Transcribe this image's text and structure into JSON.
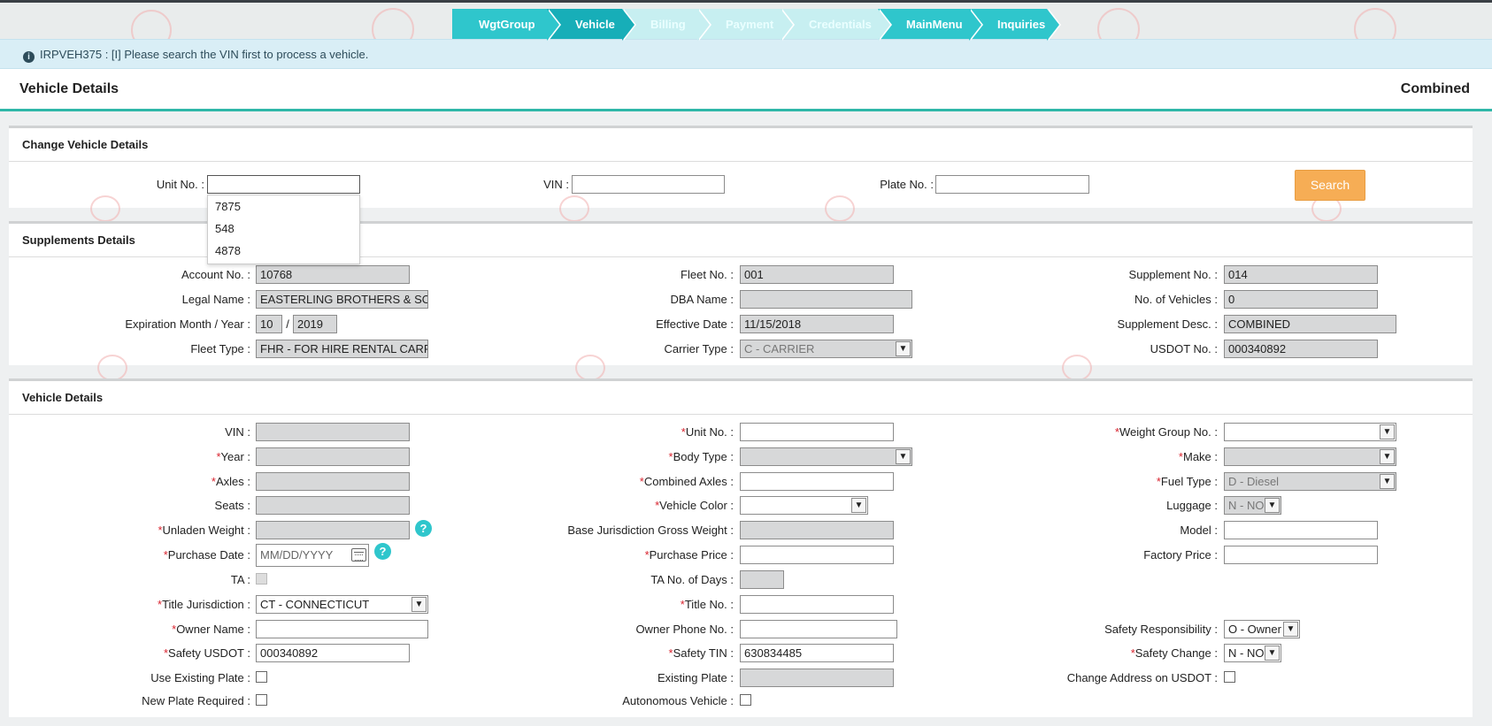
{
  "wizard": {
    "steps": [
      {
        "label": "WgtGroup",
        "state": "active"
      },
      {
        "label": "Vehicle",
        "state": "current"
      },
      {
        "label": "Billing",
        "state": "disabled"
      },
      {
        "label": "Payment",
        "state": "disabled"
      },
      {
        "label": "Credentials",
        "state": "disabled"
      },
      {
        "label": "MainMenu",
        "state": "active"
      },
      {
        "label": "Inquiries",
        "state": "active"
      }
    ]
  },
  "alert": {
    "icon": "info-circle-icon",
    "message": "IRPVEH375 : [I] Please search the VIN first to process a vehicle."
  },
  "header": {
    "title": "Vehicle Details",
    "mode": "Combined"
  },
  "change_vehicle": {
    "title": "Change Vehicle Details",
    "unit_label": "Unit No. :",
    "vin_label": "VIN :",
    "plate_label": "Plate No. :",
    "unit_value": "",
    "vin_value": "",
    "plate_value": "",
    "search_label": "Search",
    "unit_suggestions": [
      "7875",
      "548",
      "4878"
    ]
  },
  "supplements": {
    "title": "Supplements Details",
    "account_label": "Account No. :",
    "account_value": "10768",
    "fleet_label": "Fleet No. :",
    "fleet_value": "001",
    "supp_label": "Supplement No. :",
    "supp_value": "014",
    "legal_label": "Legal Name :",
    "legal_value": "EASTERLING BROTHERS & SONS",
    "dba_label": "DBA Name :",
    "dba_value": "",
    "nveh_label": "No. of Vehicles :",
    "nveh_value": "0",
    "exp_label": "Expiration Month / Year :",
    "exp_month": "10",
    "exp_sep": "/",
    "exp_year": "2019",
    "eff_label": "Effective Date :",
    "eff_value": "11/15/2018",
    "desc_label": "Supplement Desc. :",
    "desc_value": "COMBINED",
    "ftype_label": "Fleet Type :",
    "ftype_value": "FHR - FOR HIRE RENTAL CARRIER",
    "ctype_label": "Carrier Type :",
    "ctype_value": "C - CARRIER",
    "usdot_label": "USDOT No. :",
    "usdot_value": "000340892"
  },
  "vehicle": {
    "title": "Vehicle Details",
    "vin": "VIN :",
    "unit": "Unit No. :",
    "wgroup": "Weight Group No. :",
    "year": "Year :",
    "body": "Body Type :",
    "make": "Make :",
    "axles": "Axles :",
    "caxles": "Combined Axles :",
    "fuel": "Fuel Type :",
    "fuel_value": "D - Diesel",
    "seats": "Seats :",
    "color": "Vehicle Color :",
    "luggage": "Luggage :",
    "luggage_value": "N - NO",
    "unladen": "Unladen Weight :",
    "bjgw": "Base Jurisdiction Gross Weight :",
    "model": "Model :",
    "pdate": "Purchase Date :",
    "pdate_placeholder": "MM/DD/YYYY",
    "pprice": "Purchase Price :",
    "fprice": "Factory Price :",
    "ta": "TA :",
    "tadays": "TA No. of Days :",
    "tjur": "Title Jurisdiction :",
    "tjur_value": "CT - CONNECTICUT",
    "tno": "Title No. :",
    "owner": "Owner Name :",
    "ophone": "Owner Phone No. :",
    "sresp": "Safety Responsibility :",
    "sresp_value": "O - Owner",
    "susdot": "Safety USDOT :",
    "susdot_value": "000340892",
    "stin": "Safety TIN :",
    "stin_value": "630834485",
    "schange": "Safety Change :",
    "schange_value": "N - NO",
    "useplate": "Use Existing Plate :",
    "existplate": "Existing Plate :",
    "chaddr": "Change Address on USDOT :",
    "newplate": "New Plate Required :",
    "autonomous": "Autonomous Vehicle :",
    "required_mark": "*",
    "help_mark": "?"
  }
}
